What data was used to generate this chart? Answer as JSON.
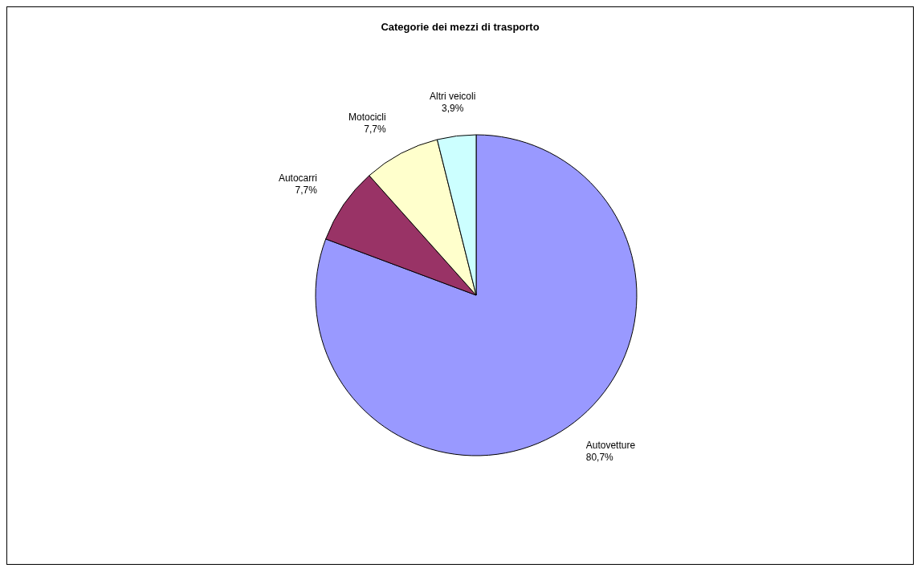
{
  "chart_data": {
    "type": "pie",
    "title": "Categorie dei mezzi di trasporto",
    "categories": [
      "Autovetture",
      "Autocarri",
      "Motocicli",
      "Altri veicoli"
    ],
    "values": [
      80.7,
      7.7,
      7.7,
      3.9
    ],
    "value_labels": [
      "80,7%",
      "7,7%",
      "7,7%",
      "3,9%"
    ],
    "colors": [
      "#9999ff",
      "#993366",
      "#ffffcc",
      "#ccffff"
    ]
  }
}
